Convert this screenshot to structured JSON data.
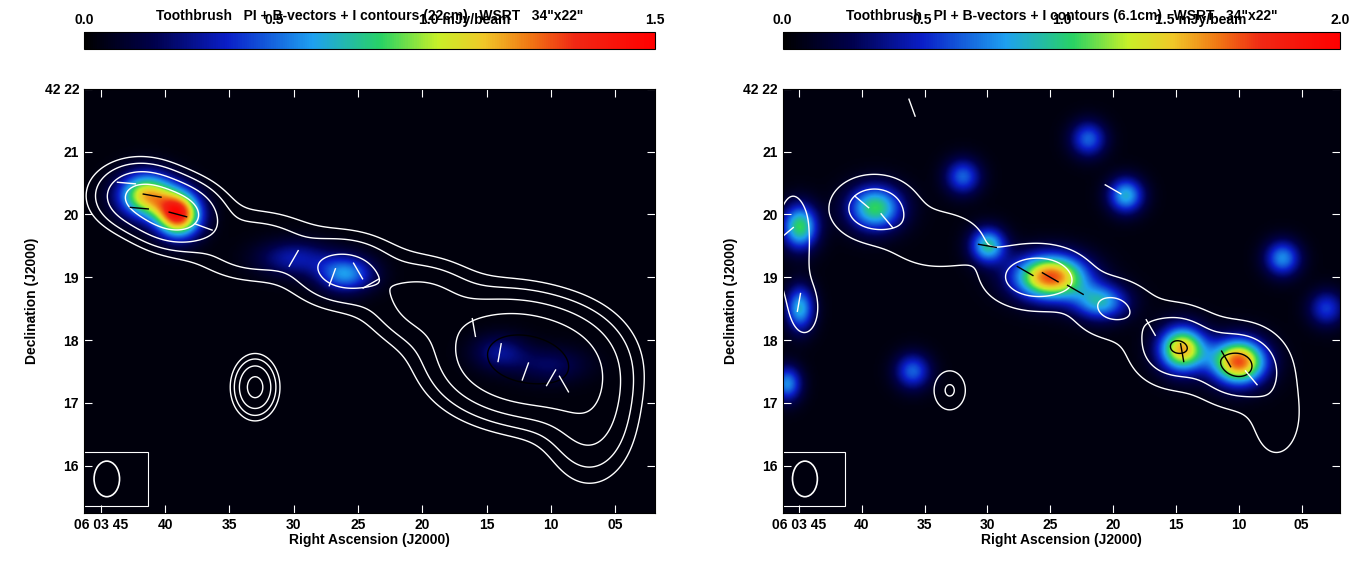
{
  "chart_data": [
    {
      "type": "image",
      "title": "Toothbrush   PI + B-vectors + I contours (22cm)   WSRT   34\"x22\"",
      "x_label": "Right Ascension (J2000)",
      "y_label": "Declination (J2000)",
      "xlim": [
        46.3,
        1.9
      ],
      "ylim": [
        15.25,
        22.0
      ],
      "xticks": [
        {
          "value": 45,
          "label": "06 03 45"
        },
        40,
        35,
        30,
        25,
        20,
        15,
        10,
        {
          "value": 5,
          "label": "05"
        }
      ],
      "yticks": [
        16,
        17,
        18,
        19,
        20,
        21,
        {
          "value": 22,
          "label": "42 22"
        }
      ],
      "colorbar": {
        "range": [
          0,
          1.5
        ],
        "ticks": [
          {
            "value": 0,
            "label": "0.0"
          },
          {
            "value": 0.5,
            "label": "0.5"
          },
          {
            "value": 1.0,
            "label": "1.0 mJy/beam"
          },
          {
            "value": 1.5,
            "label": "1.5"
          }
        ]
      },
      "beam_arcsec": [
        34,
        22
      ],
      "background": 0.03,
      "polarized_intensity": [
        {
          "ra": 41.5,
          "dec": 20.3,
          "peak": 1.0,
          "sigma_ra": 1.5,
          "sigma_dec": 0.25
        },
        {
          "ra": 39.0,
          "dec": 20.0,
          "peak": 1.3,
          "sigma_ra": 1.2,
          "sigma_dec": 0.25
        },
        {
          "ra": 30.0,
          "dec": 19.3,
          "peak": 0.3,
          "sigma_ra": 2.0,
          "sigma_dec": 0.2
        },
        {
          "ra": 26.0,
          "dec": 19.05,
          "peak": 0.55,
          "sigma_ra": 1.5,
          "sigma_dec": 0.2
        },
        {
          "ra": 14.0,
          "dec": 17.8,
          "peak": 0.25,
          "sigma_ra": 1.5,
          "sigma_dec": 0.2
        },
        {
          "ra": 10.0,
          "dec": 17.6,
          "peak": 0.18,
          "sigma_ra": 2.0,
          "sigma_dec": 0.2
        }
      ],
      "total_intensity": [
        {
          "ra": 42.0,
          "dec": 20.3,
          "peak": 2.5,
          "sigma_ra": 2.0,
          "sigma_dec": 0.3
        },
        {
          "ra": 39.0,
          "dec": 20.0,
          "peak": 3.0,
          "sigma_ra": 2.0,
          "sigma_dec": 0.3
        },
        {
          "ra": 33.0,
          "dec": 19.5,
          "peak": 1.0,
          "sigma_ra": 3.0,
          "sigma_dec": 0.35
        },
        {
          "ra": 26.0,
          "dec": 19.1,
          "peak": 1.5,
          "sigma_ra": 2.5,
          "sigma_dec": 0.35
        },
        {
          "ra": 20.0,
          "dec": 18.6,
          "peak": 1.5,
          "sigma_ra": 2.5,
          "sigma_dec": 0.4
        },
        {
          "ra": 14.0,
          "dec": 17.8,
          "peak": 4.0,
          "sigma_ra": 3.0,
          "sigma_dec": 0.5
        },
        {
          "ra": 10.0,
          "dec": 17.6,
          "peak": 4.0,
          "sigma_ra": 3.0,
          "sigma_dec": 0.5
        },
        {
          "ra": 7.0,
          "dec": 16.8,
          "peak": 1.5,
          "sigma_ra": 2.0,
          "sigma_dec": 0.6
        },
        {
          "ra": 33.0,
          "dec": 17.25,
          "peak": 3.0,
          "sigma_ra": 0.9,
          "sigma_dec": 0.25
        }
      ],
      "contour_levels": [
        0.3,
        0.6,
        1.2,
        2.4,
        4.8
      ],
      "b_vectors": [
        [
          43,
          20.5,
          -5
        ],
        [
          42,
          20.1,
          -5
        ],
        [
          41,
          20.3,
          -10
        ],
        [
          39,
          20.0,
          -15
        ],
        [
          37,
          19.8,
          -20
        ],
        [
          30,
          19.3,
          60
        ],
        [
          27,
          19.0,
          70
        ],
        [
          25,
          19.1,
          -60
        ],
        [
          24,
          18.9,
          30
        ],
        [
          16,
          18.2,
          100
        ],
        [
          14,
          17.8,
          80
        ],
        [
          12,
          17.5,
          70
        ],
        [
          10,
          17.4,
          60
        ],
        [
          9,
          17.3,
          120
        ]
      ]
    },
    {
      "type": "image",
      "title": "Toothbrush   PI + B-vectors + I contours (6.1cm)   WSRT   34\"x22\"",
      "x_label": "Right Ascension (J2000)",
      "y_label": "Declination (J2000)",
      "xlim": [
        46.3,
        1.9
      ],
      "ylim": [
        15.25,
        22.0
      ],
      "xticks": [
        {
          "value": 45,
          "label": "06 03 45"
        },
        40,
        35,
        30,
        25,
        20,
        15,
        10,
        {
          "value": 5,
          "label": "05"
        }
      ],
      "yticks": [
        16,
        17,
        18,
        19,
        20,
        21,
        {
          "value": 22,
          "label": "42 22"
        }
      ],
      "colorbar": {
        "range": [
          0,
          2.0
        ],
        "ticks": [
          {
            "value": 0,
            "label": "0.0"
          },
          {
            "value": 0.5,
            "label": "0.5"
          },
          {
            "value": 1.0,
            "label": "1.0"
          },
          {
            "value": 1.5,
            "label": "1.5 mJy/beam"
          },
          {
            "value": 2.0,
            "label": "2.0"
          }
        ]
      },
      "beam_arcsec": [
        34,
        22
      ],
      "background": 0.05,
      "polarized_intensity": [
        {
          "ra": 10.0,
          "dec": 17.65,
          "peak": 1.6,
          "sigma_ra": 1.5,
          "sigma_dec": 0.25
        },
        {
          "ra": 14.5,
          "dec": 17.85,
          "peak": 1.4,
          "sigma_ra": 1.3,
          "sigma_dec": 0.25
        },
        {
          "ra": 25.0,
          "dec": 19.0,
          "peak": 1.6,
          "sigma_ra": 2.0,
          "sigma_dec": 0.25
        },
        {
          "ra": 21.0,
          "dec": 18.6,
          "peak": 0.8,
          "sigma_ra": 1.5,
          "sigma_dec": 0.2
        },
        {
          "ra": 30.0,
          "dec": 19.5,
          "peak": 0.9,
          "sigma_ra": 1.0,
          "sigma_dec": 0.2
        },
        {
          "ra": 39.0,
          "dec": 20.1,
          "peak": 1.0,
          "sigma_ra": 1.5,
          "sigma_dec": 0.25
        },
        {
          "ra": 45.0,
          "dec": 19.8,
          "peak": 1.0,
          "sigma_ra": 1.0,
          "sigma_dec": 0.25
        },
        {
          "ra": 45.0,
          "dec": 18.5,
          "peak": 0.8,
          "sigma_ra": 0.8,
          "sigma_dec": 0.25
        },
        {
          "ra": 19.0,
          "dec": 20.3,
          "peak": 0.8,
          "sigma_ra": 1.0,
          "sigma_dec": 0.2
        },
        {
          "ra": 6.5,
          "dec": 19.3,
          "peak": 0.7,
          "sigma_ra": 1.0,
          "sigma_dec": 0.2
        },
        {
          "ra": 22.0,
          "dec": 21.2,
          "peak": 0.6,
          "sigma_ra": 1.0,
          "sigma_dec": 0.2
        },
        {
          "ra": 32.0,
          "dec": 20.6,
          "peak": 0.6,
          "sigma_ra": 1.0,
          "sigma_dec": 0.2
        },
        {
          "ra": 36.0,
          "dec": 17.5,
          "peak": 0.6,
          "sigma_ra": 1.0,
          "sigma_dec": 0.2
        },
        {
          "ra": 46.0,
          "dec": 17.3,
          "peak": 0.7,
          "sigma_ra": 0.8,
          "sigma_dec": 0.2
        },
        {
          "ra": 3.0,
          "dec": 18.5,
          "peak": 0.5,
          "sigma_ra": 1.0,
          "sigma_dec": 0.2
        }
      ],
      "total_intensity": [
        {
          "ra": 39.0,
          "dec": 20.1,
          "peak": 1.5,
          "sigma_ra": 2.0,
          "sigma_dec": 0.3
        },
        {
          "ra": 34.0,
          "dec": 19.6,
          "peak": 0.8,
          "sigma_ra": 2.5,
          "sigma_dec": 0.3
        },
        {
          "ra": 26.0,
          "dec": 19.0,
          "peak": 1.5,
          "sigma_ra": 2.5,
          "sigma_dec": 0.3
        },
        {
          "ra": 20.0,
          "dec": 18.5,
          "peak": 1.0,
          "sigma_ra": 2.0,
          "sigma_dec": 0.3
        },
        {
          "ra": 15.0,
          "dec": 17.9,
          "peak": 2.0,
          "sigma_ra": 2.0,
          "sigma_dec": 0.35
        },
        {
          "ra": 10.0,
          "dec": 17.6,
          "peak": 2.2,
          "sigma_ra": 2.0,
          "sigma_dec": 0.35
        },
        {
          "ra": 7.0,
          "dec": 16.8,
          "peak": 0.6,
          "sigma_ra": 1.5,
          "sigma_dec": 0.5
        },
        {
          "ra": 33.0,
          "dec": 17.2,
          "peak": 1.0,
          "sigma_ra": 0.8,
          "sigma_dec": 0.2
        },
        {
          "ra": 45.5,
          "dec": 19.5,
          "peak": 0.7,
          "sigma_ra": 1.0,
          "sigma_dec": 0.6
        },
        {
          "ra": 44.5,
          "dec": 18.5,
          "peak": 0.6,
          "sigma_ra": 0.8,
          "sigma_dec": 0.3
        }
      ],
      "contour_levels": [
        0.3,
        0.9,
        2.0
      ],
      "b_vectors": [
        [
          40,
          20.2,
          -40
        ],
        [
          38,
          19.9,
          -50
        ],
        [
          30,
          19.5,
          -10
        ],
        [
          27,
          19.1,
          -30
        ],
        [
          25,
          19.0,
          -30
        ],
        [
          23,
          18.8,
          -30
        ],
        [
          17,
          18.2,
          -60
        ],
        [
          14.5,
          17.8,
          -80
        ],
        [
          11,
          17.7,
          -60
        ],
        [
          9,
          17.4,
          -50
        ],
        [
          46,
          19.7,
          40
        ],
        [
          45,
          18.6,
          80
        ],
        [
          20,
          20.4,
          -30
        ],
        [
          36,
          21.7,
          -70
        ]
      ]
    }
  ]
}
